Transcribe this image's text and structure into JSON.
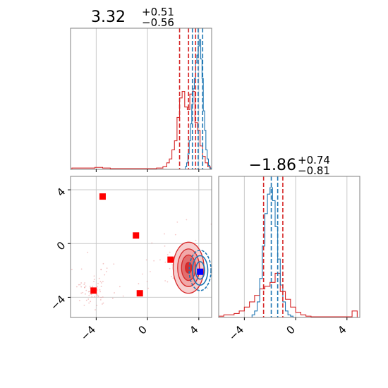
{
  "chart_data": [
    {
      "type": "histogram",
      "panel": "marginal-param1",
      "title": {
        "value": "3.32",
        "plus": "+0.51",
        "minus": "−0.56"
      },
      "xlim": [
        -6,
        5
      ],
      "grid": true,
      "quantiles": {
        "red": [
          2.5,
          3.2,
          3.75
        ],
        "blue": [
          3.5,
          3.95,
          4.3
        ]
      },
      "series": [
        {
          "color": "#d62728",
          "bin_centers": [
            -5.6,
            -5.0,
            -4.4,
            -3.8,
            -3.2,
            -2.6,
            -2.0,
            -1.4,
            -0.8,
            -0.2,
            0.4,
            1.0,
            1.4,
            1.6,
            1.8,
            2.0,
            2.2,
            2.4,
            2.6,
            2.8,
            3.0,
            3.2,
            3.4,
            3.6,
            3.8,
            4.0,
            4.2,
            4.4,
            4.6,
            4.8
          ],
          "values": [
            0.01,
            0.01,
            0.01,
            0.015,
            0.01,
            0.005,
            0.005,
            0.005,
            0.005,
            0.005,
            0.005,
            0.01,
            0.02,
            0.05,
            0.08,
            0.15,
            0.22,
            0.4,
            0.55,
            0.6,
            0.48,
            0.46,
            0.58,
            0.6,
            0.36,
            0.3,
            0.18,
            0.1,
            0.05,
            0.02
          ]
        },
        {
          "color": "#1f77b4",
          "bin_centers": [
            3.0,
            3.1,
            3.2,
            3.3,
            3.4,
            3.5,
            3.6,
            3.7,
            3.8,
            3.9,
            4.0,
            4.1,
            4.2,
            4.3,
            4.4,
            4.5,
            4.6,
            4.7,
            4.8,
            4.9
          ],
          "values": [
            0.02,
            0.05,
            0.12,
            0.22,
            0.35,
            0.5,
            0.62,
            0.7,
            0.82,
            0.88,
            0.95,
            1.0,
            0.85,
            0.7,
            0.45,
            0.3,
            0.15,
            0.08,
            0.03,
            0.01
          ]
        }
      ]
    },
    {
      "type": "histogram",
      "panel": "marginal-param2",
      "title": {
        "value": "−1.86",
        "plus": "+0.74",
        "minus": "−0.81"
      },
      "xlim": [
        -6,
        5
      ],
      "grid": true,
      "xticks": [
        "−4",
        "0",
        "4"
      ],
      "quantiles": {
        "red": [
          -2.5,
          -1.0
        ],
        "blue": [
          -1.9,
          -1.4
        ]
      },
      "series": [
        {
          "color": "#d62728",
          "bin_centers": [
            -5.8,
            -5.4,
            -5.0,
            -4.6,
            -4.2,
            -3.8,
            -3.4,
            -3.0,
            -2.6,
            -2.2,
            -1.8,
            -1.4,
            -1.0,
            -0.6,
            -0.2,
            0.2,
            0.6,
            1.0,
            1.4,
            1.8,
            2.2,
            2.6,
            3.0,
            3.4,
            3.8,
            4.2,
            4.6
          ],
          "values": [
            0.01,
            0.02,
            0.02,
            0.03,
            0.05,
            0.08,
            0.12,
            0.17,
            0.22,
            0.24,
            0.27,
            0.34,
            0.2,
            0.14,
            0.08,
            0.04,
            0.02,
            0.01,
            0.005,
            0.005,
            0.005,
            0.005,
            0.005,
            0.005,
            0.005,
            0.005,
            0.05
          ]
        },
        {
          "color": "#1f77b4",
          "bin_centers": [
            -3.3,
            -3.1,
            -2.9,
            -2.7,
            -2.5,
            -2.3,
            -2.1,
            -1.9,
            -1.7,
            -1.5,
            -1.3,
            -1.1,
            -0.9,
            -0.7,
            -0.5,
            -0.3
          ],
          "values": [
            0.02,
            0.05,
            0.12,
            0.3,
            0.55,
            0.8,
            0.95,
            1.0,
            0.9,
            0.7,
            0.45,
            0.25,
            0.12,
            0.05,
            0.02,
            0.01
          ]
        }
      ]
    },
    {
      "type": "scatter",
      "panel": "joint",
      "xlim": [
        -6,
        5
      ],
      "ylim": [
        -5.5,
        5
      ],
      "xticks": [
        "−4",
        "0",
        "4"
      ],
      "yticks": [
        "−4",
        "0",
        "4"
      ],
      "grid": true,
      "markers": {
        "color": "#ff0000",
        "shape": "square",
        "points": [
          [
            -3.5,
            3.5
          ],
          [
            -0.9,
            0.6
          ],
          [
            -4.2,
            -3.5
          ],
          [
            -0.6,
            -3.7
          ],
          [
            1.8,
            -1.2
          ]
        ]
      },
      "true_value": {
        "color": "#0000ff",
        "shape": "square",
        "x": 4.1,
        "y": -2.1
      },
      "contours": [
        {
          "color": "#d62728",
          "cx": 3.2,
          "cy": -1.8,
          "levels": [
            [
              1.2,
              1.9
            ],
            [
              0.85,
              1.4
            ],
            [
              0.55,
              0.95
            ],
            [
              0.25,
              0.4
            ]
          ]
        },
        {
          "color": "#1f77b4",
          "cx": 4.1,
          "cy": -2.0,
          "levels": [
            [
              0.85,
              1.5
            ],
            [
              0.6,
              1.1
            ],
            [
              0.35,
              0.65
            ]
          ]
        }
      ]
    }
  ]
}
